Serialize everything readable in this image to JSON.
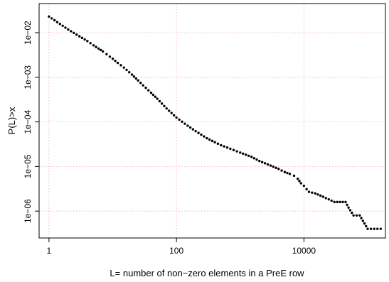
{
  "chart_data": {
    "type": "scatter",
    "title": "",
    "xlabel": "L= number of non−zero elements in a PreE row",
    "ylabel": "P(L)>x",
    "xscale": "log",
    "yscale": "log",
    "xlim": [
      0.7,
      190000
    ],
    "ylim": [
      2.5e-07,
      0.045
    ],
    "x_ticks": [
      {
        "value": 1,
        "label": "1"
      },
      {
        "value": 100,
        "label": "100"
      },
      {
        "value": 10000,
        "label": "10000"
      }
    ],
    "y_ticks": [
      {
        "value": 0.01,
        "label": "1e−02"
      },
      {
        "value": 0.001,
        "label": "1e−03"
      },
      {
        "value": 0.0001,
        "label": "1e−04"
      },
      {
        "value": 1e-05,
        "label": "1e−05"
      },
      {
        "value": 1e-06,
        "label": "1e−06"
      }
    ],
    "grid": true,
    "marker_color": "#000000",
    "grid_color": "#f2aaaa",
    "points": [
      [
        1,
        0.023
      ],
      [
        2,
        0.0118
      ],
      [
        3,
        0.0083
      ],
      [
        4,
        0.0065
      ],
      [
        5,
        0.0052
      ],
      [
        6,
        0.0044
      ],
      [
        7,
        0.0038
      ],
      [
        8,
        0.0033
      ],
      [
        9,
        0.0029
      ],
      [
        10,
        0.0026
      ],
      [
        12,
        0.0021
      ],
      [
        15,
        0.00165
      ],
      [
        20,
        0.00115
      ],
      [
        25,
        0.00085
      ],
      [
        30,
        0.00066
      ],
      [
        40,
        0.00045
      ],
      [
        50,
        0.00033
      ],
      [
        70,
        0.0002
      ],
      [
        100,
        0.000125
      ],
      [
        150,
        8.2e-05
      ],
      [
        200,
        6.2e-05
      ],
      [
        300,
        4.3e-05
      ],
      [
        400,
        3.5e-05
      ],
      [
        500,
        3e-05
      ],
      [
        700,
        2.5e-05
      ],
      [
        1000,
        2.05e-05
      ],
      [
        1500,
        1.65e-05
      ],
      [
        2000,
        1.33e-05
      ],
      [
        3000,
        1.05e-05
      ],
      [
        4000,
        8.8e-06
      ],
      [
        5000,
        7.5e-06
      ],
      [
        6000,
        6.8e-06
      ],
      [
        7000,
        6.2e-06
      ],
      [
        8000,
        5.3e-06
      ],
      [
        9000,
        4.2e-06
      ],
      [
        10000,
        3.7e-06
      ],
      [
        11000,
        3.1e-06
      ],
      [
        12000,
        2.7e-06
      ],
      [
        15000,
        2.5e-06
      ],
      [
        20000,
        2.1e-06
      ],
      [
        30000,
        1.6e-06
      ],
      [
        45000,
        1.6e-06
      ],
      [
        50000,
        1.2e-06
      ],
      [
        60000,
        8e-07
      ],
      [
        75000,
        8e-07
      ],
      [
        100000,
        4e-07
      ],
      [
        160000,
        4e-07
      ]
    ]
  }
}
